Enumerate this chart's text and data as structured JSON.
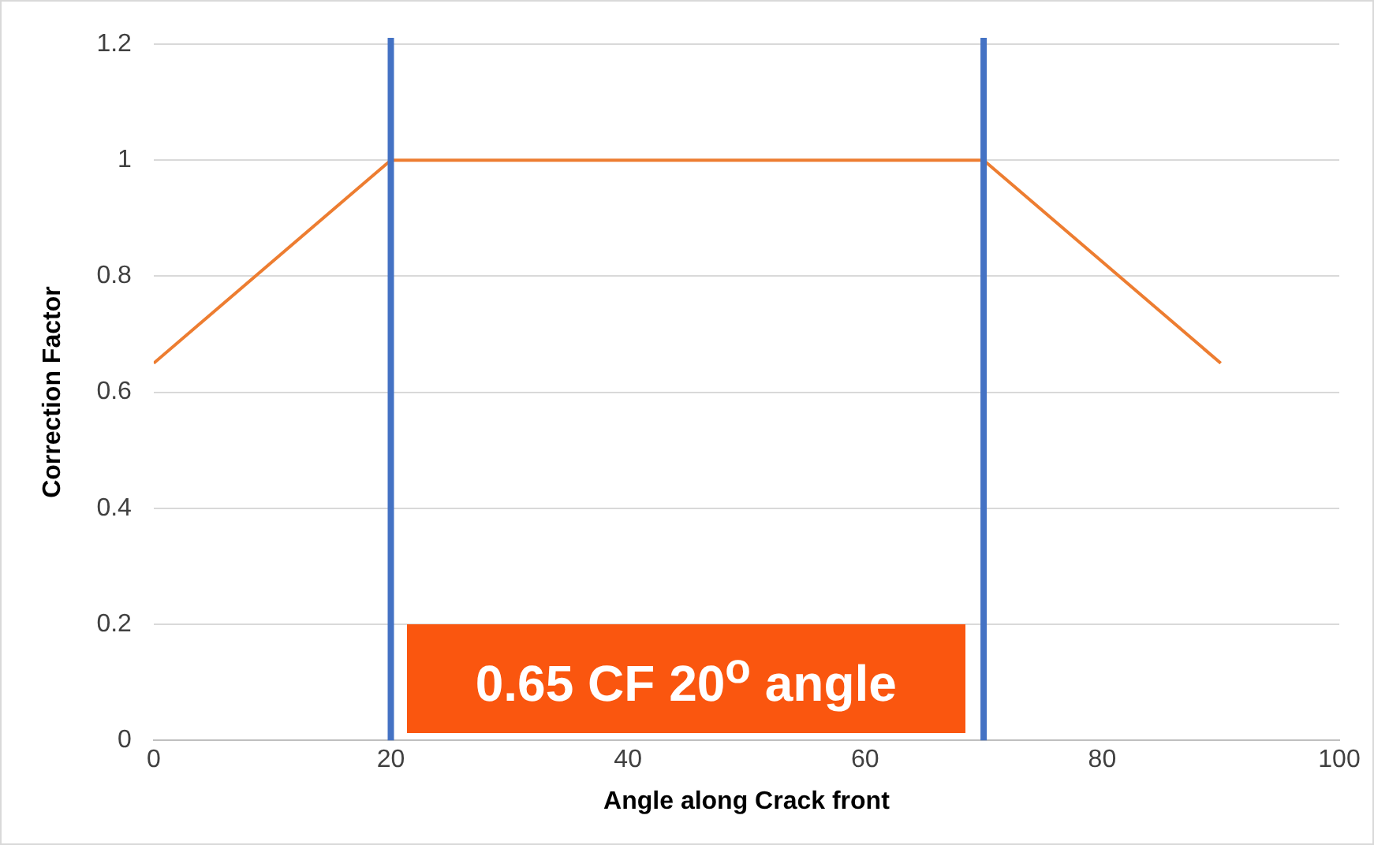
{
  "chart_data": {
    "type": "line",
    "xlabel": "Angle along Crack front",
    "ylabel": "Correction Factor",
    "x": [
      0,
      20,
      70,
      90
    ],
    "series": [
      {
        "color": "#ed7d31",
        "values": [
          0.65,
          1,
          1,
          0.65
        ]
      }
    ],
    "xlim": [
      0,
      100
    ],
    "xticks": [
      0,
      20,
      40,
      60,
      80,
      100
    ],
    "ylim": [
      0,
      1.2
    ],
    "yticks": [
      0,
      0.2,
      0.4,
      0.6,
      0.8,
      1,
      1.2
    ],
    "grid": "y",
    "legend": false,
    "marker": "none",
    "line_style": "solid",
    "ref_lines": [
      {
        "axis": "x",
        "value": 20,
        "color": "#4472c4"
      },
      {
        "axis": "x",
        "value": 70,
        "color": "#4472c4"
      }
    ],
    "annotations": [
      "0.65 CF 20$^{o}$ angle"
    ]
  }
}
